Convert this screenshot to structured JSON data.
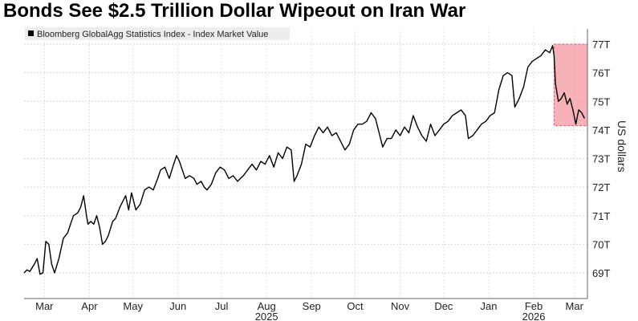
{
  "title": "Bonds See $2.5 Trillion Dollar Wipeout on Iran War",
  "chart_data": {
    "type": "line",
    "title": "Bonds See $2.5 Trillion Dollar Wipeout on Iran War",
    "xlabel": "",
    "ylabel": "US dollars",
    "ylim": [
      68.5,
      77.5
    ],
    "y_ticks": [
      "69T",
      "70T",
      "71T",
      "72T",
      "73T",
      "74T",
      "75T",
      "76T",
      "77T"
    ],
    "y_tick_values": [
      69,
      70,
      71,
      72,
      73,
      74,
      75,
      76,
      77
    ],
    "x_range": [
      "2025-03-01",
      "2026-03-24"
    ],
    "x_ticks": [
      {
        "label": "Mar",
        "date": "2025-03-15"
      },
      {
        "label": "Apr",
        "date": "2025-04-15"
      },
      {
        "label": "May",
        "date": "2025-05-15"
      },
      {
        "label": "Jun",
        "date": "2025-06-15"
      },
      {
        "label": "Jul",
        "date": "2025-07-15"
      },
      {
        "label": "Aug",
        "date": "2025-08-15"
      },
      {
        "label": "Sep",
        "date": "2025-09-15"
      },
      {
        "label": "Oct",
        "date": "2025-10-15"
      },
      {
        "label": "Nov",
        "date": "2025-11-15"
      },
      {
        "label": "Dec",
        "date": "2025-12-15"
      },
      {
        "label": "Jan",
        "date": "2026-01-15"
      },
      {
        "label": "Feb",
        "date": "2026-02-15"
      },
      {
        "label": "Mar",
        "date": "2026-03-15"
      }
    ],
    "year_labels": [
      {
        "label": "2025",
        "date": "2025-08-15"
      },
      {
        "label": "2026",
        "date": "2026-02-15"
      }
    ],
    "grid": true,
    "legend": "top-left",
    "series": [
      {
        "name": "Bloomberg GlobalAgg Statistics Index - Index Market Value",
        "color": "#000000",
        "points": [
          [
            "2025-03-01",
            69.0
          ],
          [
            "2025-03-03",
            69.1
          ],
          [
            "2025-03-05",
            69.05
          ],
          [
            "2025-03-08",
            69.3
          ],
          [
            "2025-03-10",
            69.5
          ],
          [
            "2025-03-12",
            68.95
          ],
          [
            "2025-03-14",
            69.0
          ],
          [
            "2025-03-16",
            70.1
          ],
          [
            "2025-03-18",
            70.0
          ],
          [
            "2025-03-20",
            69.3
          ],
          [
            "2025-03-22",
            69.0
          ],
          [
            "2025-03-25",
            69.5
          ],
          [
            "2025-03-28",
            70.2
          ],
          [
            "2025-03-31",
            70.4
          ],
          [
            "2025-04-02",
            70.7
          ],
          [
            "2025-04-04",
            71.0
          ],
          [
            "2025-04-07",
            71.1
          ],
          [
            "2025-04-09",
            71.3
          ],
          [
            "2025-04-11",
            71.7
          ],
          [
            "2025-04-13",
            71.0
          ],
          [
            "2025-04-14",
            70.7
          ],
          [
            "2025-04-16",
            70.8
          ],
          [
            "2025-04-18",
            70.7
          ],
          [
            "2025-04-20",
            71.0
          ],
          [
            "2025-04-22",
            70.6
          ],
          [
            "2025-04-24",
            70.0
          ],
          [
            "2025-04-26",
            70.1
          ],
          [
            "2025-04-28",
            70.3
          ],
          [
            "2025-05-01",
            70.8
          ],
          [
            "2025-05-03",
            70.9
          ],
          [
            "2025-05-06",
            71.3
          ],
          [
            "2025-05-08",
            71.5
          ],
          [
            "2025-05-10",
            71.7
          ],
          [
            "2025-05-12",
            71.2
          ],
          [
            "2025-05-14",
            71.8
          ],
          [
            "2025-05-17",
            71.2
          ],
          [
            "2025-05-20",
            71.4
          ],
          [
            "2025-05-23",
            71.9
          ],
          [
            "2025-05-26",
            72.0
          ],
          [
            "2025-05-29",
            71.9
          ],
          [
            "2025-06-01",
            72.3
          ],
          [
            "2025-06-03",
            72.6
          ],
          [
            "2025-06-06",
            72.7
          ],
          [
            "2025-06-09",
            72.3
          ],
          [
            "2025-06-12",
            72.8
          ],
          [
            "2025-06-14",
            73.1
          ],
          [
            "2025-06-16",
            72.9
          ],
          [
            "2025-06-18",
            72.6
          ],
          [
            "2025-06-20",
            72.3
          ],
          [
            "2025-06-23",
            72.4
          ],
          [
            "2025-06-26",
            72.3
          ],
          [
            "2025-06-28",
            72.1
          ],
          [
            "2025-07-01",
            72.2
          ],
          [
            "2025-07-03",
            72.0
          ],
          [
            "2025-07-05",
            71.9
          ],
          [
            "2025-07-08",
            72.1
          ],
          [
            "2025-07-11",
            72.5
          ],
          [
            "2025-07-14",
            72.7
          ],
          [
            "2025-07-17",
            72.6
          ],
          [
            "2025-07-20",
            72.3
          ],
          [
            "2025-07-23",
            72.4
          ],
          [
            "2025-07-26",
            72.2
          ],
          [
            "2025-07-30",
            72.4
          ],
          [
            "2025-08-02",
            72.6
          ],
          [
            "2025-08-05",
            72.8
          ],
          [
            "2025-08-08",
            72.6
          ],
          [
            "2025-08-11",
            72.9
          ],
          [
            "2025-08-14",
            72.8
          ],
          [
            "2025-08-17",
            73.1
          ],
          [
            "2025-08-20",
            72.7
          ],
          [
            "2025-08-23",
            73.2
          ],
          [
            "2025-08-26",
            73.0
          ],
          [
            "2025-08-29",
            73.4
          ],
          [
            "2025-09-01",
            73.3
          ],
          [
            "2025-09-03",
            72.2
          ],
          [
            "2025-09-05",
            72.4
          ],
          [
            "2025-09-08",
            72.8
          ],
          [
            "2025-09-11",
            73.5
          ],
          [
            "2025-09-14",
            73.4
          ],
          [
            "2025-09-17",
            73.8
          ],
          [
            "2025-09-20",
            74.1
          ],
          [
            "2025-09-23",
            73.9
          ],
          [
            "2025-09-26",
            74.1
          ],
          [
            "2025-09-29",
            73.8
          ],
          [
            "2025-10-02",
            73.9
          ],
          [
            "2025-10-05",
            73.6
          ],
          [
            "2025-10-08",
            73.3
          ],
          [
            "2025-10-11",
            73.5
          ],
          [
            "2025-10-14",
            74.0
          ],
          [
            "2025-10-17",
            74.2
          ],
          [
            "2025-10-20",
            74.2
          ],
          [
            "2025-10-23",
            74.3
          ],
          [
            "2025-10-26",
            74.6
          ],
          [
            "2025-10-29",
            74.4
          ],
          [
            "2025-11-01",
            73.8
          ],
          [
            "2025-11-03",
            73.4
          ],
          [
            "2025-11-06",
            73.7
          ],
          [
            "2025-11-09",
            73.7
          ],
          [
            "2025-11-12",
            74.0
          ],
          [
            "2025-11-15",
            73.8
          ],
          [
            "2025-11-18",
            74.1
          ],
          [
            "2025-11-21",
            73.9
          ],
          [
            "2025-11-24",
            74.5
          ],
          [
            "2025-11-27",
            74.1
          ],
          [
            "2025-11-30",
            73.8
          ],
          [
            "2025-12-03",
            73.6
          ],
          [
            "2025-12-06",
            74.2
          ],
          [
            "2025-12-09",
            73.8
          ],
          [
            "2025-12-12",
            74.0
          ],
          [
            "2025-12-15",
            74.2
          ],
          [
            "2025-12-18",
            74.3
          ],
          [
            "2025-12-21",
            74.5
          ],
          [
            "2025-12-24",
            74.6
          ],
          [
            "2025-12-27",
            74.7
          ],
          [
            "2025-12-30",
            74.5
          ],
          [
            "2026-01-01",
            73.7
          ],
          [
            "2026-01-04",
            73.8
          ],
          [
            "2026-01-07",
            74.0
          ],
          [
            "2026-01-10",
            74.2
          ],
          [
            "2026-01-13",
            74.3
          ],
          [
            "2026-01-16",
            74.5
          ],
          [
            "2026-01-19",
            74.6
          ],
          [
            "2026-01-22",
            75.4
          ],
          [
            "2026-01-25",
            75.9
          ],
          [
            "2026-01-28",
            76.0
          ],
          [
            "2026-01-31",
            75.9
          ],
          [
            "2026-02-02",
            74.8
          ],
          [
            "2026-02-05",
            75.1
          ],
          [
            "2026-02-08",
            75.5
          ],
          [
            "2026-02-11",
            76.2
          ],
          [
            "2026-02-14",
            76.4
          ],
          [
            "2026-02-17",
            76.5
          ],
          [
            "2026-02-20",
            76.6
          ],
          [
            "2026-02-23",
            76.8
          ],
          [
            "2026-02-26",
            76.7
          ],
          [
            "2026-02-28",
            76.95
          ],
          [
            "2026-03-01",
            76.6
          ],
          [
            "2026-03-02",
            75.6
          ],
          [
            "2026-03-04",
            75.0
          ],
          [
            "2026-03-06",
            75.1
          ],
          [
            "2026-03-08",
            75.3
          ],
          [
            "2026-03-10",
            74.9
          ],
          [
            "2026-03-12",
            75.1
          ],
          [
            "2026-03-14",
            74.7
          ],
          [
            "2026-03-16",
            74.2
          ],
          [
            "2026-03-18",
            74.7
          ],
          [
            "2026-03-20",
            74.6
          ],
          [
            "2026-03-22",
            74.4
          ]
        ]
      }
    ],
    "highlight": {
      "x": [
        "2026-03-01",
        "2026-03-24"
      ],
      "y": [
        74.15,
        77.0
      ],
      "color": "#f4a3ad"
    }
  }
}
